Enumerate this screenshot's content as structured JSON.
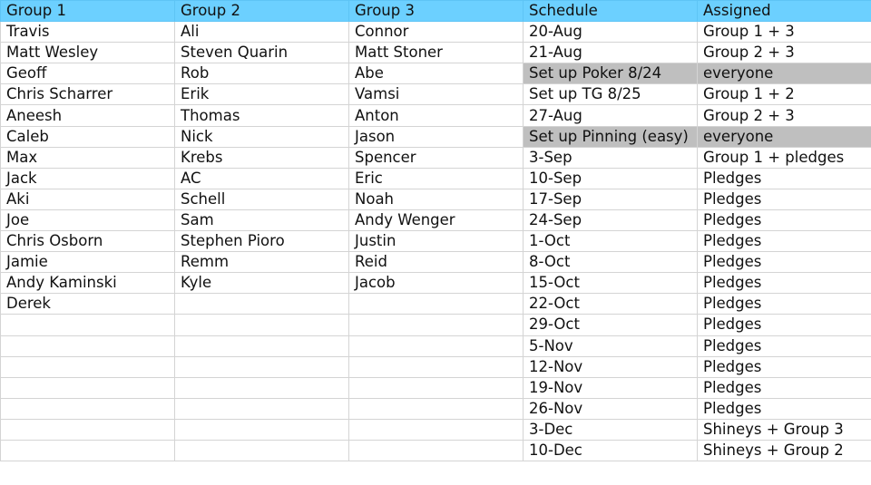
{
  "headers": [
    "Group 1",
    "Group 2",
    "Group 3",
    "Schedule",
    "Assigned"
  ],
  "highlight_color": "#bfbfbf",
  "header_color": "#6cd0ff",
  "rows": [
    {
      "g1": "Travis",
      "g2": "Ali",
      "g3": "Connor",
      "schedule": "20-Aug",
      "assigned": "Group 1 + 3",
      "highlight": false
    },
    {
      "g1": "Matt Wesley",
      "g2": "Steven Quarin",
      "g3": "Matt Stoner",
      "schedule": "21-Aug",
      "assigned": "Group 2 + 3",
      "highlight": false
    },
    {
      "g1": "Geoff",
      "g2": "Rob",
      "g3": "Abe",
      "schedule": "Set up Poker 8/24",
      "assigned": "everyone",
      "highlight": true
    },
    {
      "g1": "Chris Scharrer",
      "g2": "Erik",
      "g3": "Vamsi",
      "schedule": "Set up TG 8/25",
      "assigned": "Group 1 + 2",
      "highlight": false
    },
    {
      "g1": "Aneesh",
      "g2": "Thomas",
      "g3": "Anton",
      "schedule": "27-Aug",
      "assigned": "Group 2 + 3",
      "highlight": false
    },
    {
      "g1": "Caleb",
      "g2": "Nick",
      "g3": "Jason",
      "schedule": "Set up Pinning (easy)",
      "assigned": "everyone",
      "highlight": true
    },
    {
      "g1": "Max",
      "g2": "Krebs",
      "g3": "Spencer",
      "schedule": "3-Sep",
      "assigned": "Group 1 + pledges",
      "highlight": false
    },
    {
      "g1": "Jack",
      "g2": "AC",
      "g3": "Eric",
      "schedule": "10-Sep",
      "assigned": "Pledges",
      "highlight": false
    },
    {
      "g1": "Aki",
      "g2": "Schell",
      "g3": "Noah",
      "schedule": "17-Sep",
      "assigned": "Pledges",
      "highlight": false
    },
    {
      "g1": "Joe",
      "g2": "Sam",
      "g3": "Andy Wenger",
      "schedule": "24-Sep",
      "assigned": "Pledges",
      "highlight": false
    },
    {
      "g1": "Chris Osborn",
      "g2": "Stephen Pioro",
      "g3": "Justin",
      "schedule": "1-Oct",
      "assigned": "Pledges",
      "highlight": false
    },
    {
      "g1": "Jamie",
      "g2": "Remm",
      "g3": "Reid",
      "schedule": "8-Oct",
      "assigned": "Pledges",
      "highlight": false
    },
    {
      "g1": "Andy Kaminski",
      "g2": "Kyle",
      "g3": "Jacob",
      "schedule": "15-Oct",
      "assigned": "Pledges",
      "highlight": false
    },
    {
      "g1": "Derek",
      "g2": "",
      "g3": "",
      "schedule": "22-Oct",
      "assigned": "Pledges",
      "highlight": false
    },
    {
      "g1": "",
      "g2": "",
      "g3": "",
      "schedule": "29-Oct",
      "assigned": "Pledges",
      "highlight": false
    },
    {
      "g1": "",
      "g2": "",
      "g3": "",
      "schedule": "5-Nov",
      "assigned": "Pledges",
      "highlight": false
    },
    {
      "g1": "",
      "g2": "",
      "g3": "",
      "schedule": "12-Nov",
      "assigned": "Pledges",
      "highlight": false
    },
    {
      "g1": "",
      "g2": "",
      "g3": "",
      "schedule": "19-Nov",
      "assigned": "Pledges",
      "highlight": false
    },
    {
      "g1": "",
      "g2": "",
      "g3": "",
      "schedule": "26-Nov",
      "assigned": "Pledges",
      "highlight": false
    },
    {
      "g1": "",
      "g2": "",
      "g3": "",
      "schedule": "3-Dec",
      "assigned": "Shineys + Group 3",
      "highlight": false
    },
    {
      "g1": "",
      "g2": "",
      "g3": "",
      "schedule": "10-Dec",
      "assigned": "Shineys + Group 2",
      "highlight": false
    }
  ]
}
